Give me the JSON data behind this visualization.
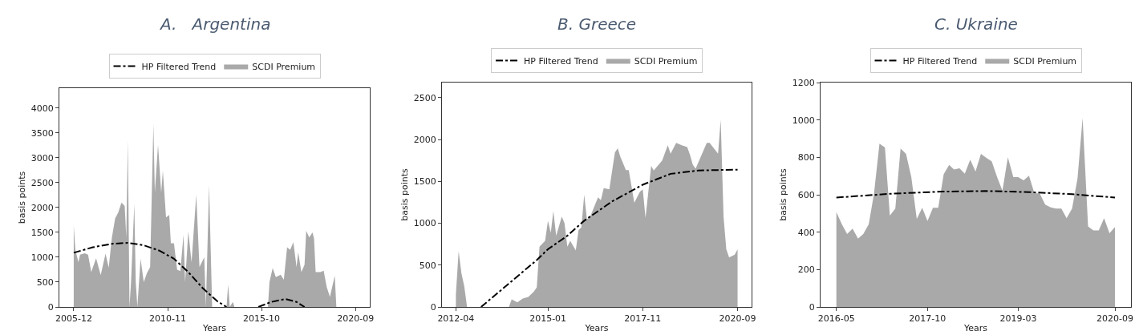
{
  "chart_data": [
    {
      "type": "area",
      "title": "A.   Argentina",
      "xlabel": "Years",
      "ylabel": "basis points",
      "xlim": [
        "2005-03",
        "2021-06"
      ],
      "xticks": [
        "2005-12",
        "2010-11",
        "2015-10",
        "2020-09"
      ],
      "ylim": [
        0,
        4400
      ],
      "yticks": [
        0,
        500,
        1000,
        1500,
        2000,
        2500,
        3000,
        3500,
        4000
      ],
      "legend": "top",
      "series": [
        {
          "name": "HP Filtered Trend",
          "type": "line",
          "color": "#000000",
          "line_style": "dashdot",
          "x": [
            "2005-12",
            "2006-12",
            "2007-12",
            "2008-10",
            "2009-08",
            "2010-06",
            "2011-03",
            "2011-12",
            "2012-09",
            "2013-06",
            "2013-12",
            "2014-10",
            "2015-08",
            "2016-04",
            "2017-01",
            "2017-08",
            "2018-01"
          ],
          "values": [
            1090,
            1200,
            1270,
            1290,
            1240,
            1130,
            970,
            700,
            380,
            120,
            0,
            null,
            0,
            100,
            160,
            100,
            0
          ]
        },
        {
          "name": "SCDI Premium",
          "type": "area",
          "color": "#a9a9a9",
          "x": [
            "2005-12",
            "2006-01",
            "2006-03",
            "2006-04",
            "2006-07",
            "2006-09",
            "2006-11",
            "2007-02",
            "2007-05",
            "2007-08",
            "2007-10",
            "2007-12",
            "2008-02",
            "2008-04",
            "2008-06",
            "2008-08",
            "2008-09",
            "2008-10",
            "2008-11",
            "2008-12",
            "2009-02",
            "2009-03",
            "2009-04",
            "2009-06",
            "2009-08",
            "2009-10",
            "2009-12",
            "2010-02",
            "2010-03",
            "2010-05",
            "2010-07",
            "2010-08",
            "2010-10",
            "2010-12",
            "2011-01",
            "2011-03",
            "2011-05",
            "2011-07",
            "2011-09",
            "2011-10",
            "2011-12",
            "2012-02",
            "2012-05",
            "2012-07",
            "2012-10",
            "2012-11",
            "2013-01",
            "2013-03",
            "2013-12",
            "2014-01",
            "2014-02",
            "2014-04",
            "2014-05",
            "2016-02",
            "2016-03",
            "2016-05",
            "2016-07",
            "2016-10",
            "2016-12",
            "2017-02",
            "2017-04",
            "2017-06",
            "2017-08",
            "2017-09",
            "2017-11",
            "2018-01",
            "2018-02",
            "2018-04",
            "2018-06",
            "2018-07",
            "2018-08",
            "2018-11",
            "2019-01",
            "2019-03",
            "2019-05",
            "2019-08",
            "2019-09"
          ],
          "values": [
            1630,
            1150,
            900,
            1050,
            1080,
            1050,
            700,
            980,
            640,
            1070,
            790,
            1400,
            1780,
            1900,
            2100,
            2030,
            1400,
            3340,
            0,
            500,
            2070,
            500,
            0,
            970,
            500,
            680,
            800,
            3680,
            2300,
            3260,
            2300,
            2740,
            1800,
            1850,
            1280,
            1280,
            750,
            720,
            1450,
            500,
            1520,
            900,
            2260,
            800,
            1000,
            0,
            2450,
            0,
            0,
            450,
            0,
            100,
            0,
            0,
            500,
            780,
            600,
            650,
            550,
            1200,
            1150,
            1300,
            800,
            1100,
            700,
            850,
            1530,
            1400,
            1500,
            1380,
            700,
            700,
            730,
            400,
            200,
            630,
            0
          ]
        }
      ]
    },
    {
      "type": "area",
      "title": "B. Greece",
      "xlabel": "Years",
      "ylabel": "basis points",
      "xlim": [
        "2011-11",
        "2021-02"
      ],
      "xticks": [
        "2012-04",
        "2015-01",
        "2017-11",
        "2020-09"
      ],
      "ylim": [
        0,
        2680
      ],
      "yticks": [
        0,
        500,
        1000,
        1500,
        2000,
        2500
      ],
      "legend": "top",
      "series": [
        {
          "name": "HP Filtered Trend",
          "type": "line",
          "color": "#000000",
          "line_style": "dashdot",
          "x": [
            "2013-01",
            "2013-11",
            "2014-09",
            "2015-01",
            "2015-08",
            "2016-02",
            "2016-12",
            "2017-11",
            "2018-09",
            "2019-07",
            "2020-09"
          ],
          "values": [
            0,
            280,
            560,
            690,
            850,
            1030,
            1260,
            1460,
            1590,
            1630,
            1640
          ]
        },
        {
          "name": "SCDI Premium",
          "type": "area",
          "color": "#a9a9a9",
          "x": [
            "2012-04",
            "2012-05",
            "2012-06",
            "2012-07",
            "2012-08",
            "2013-11",
            "2013-12",
            "2014-02",
            "2014-04",
            "2014-06",
            "2014-08",
            "2014-09",
            "2014-10",
            "2014-12",
            "2015-01",
            "2015-02",
            "2015-03",
            "2015-04",
            "2015-06",
            "2015-07",
            "2015-08",
            "2015-09",
            "2015-11",
            "2015-12",
            "2016-01",
            "2016-02",
            "2016-03",
            "2016-04",
            "2016-07",
            "2016-08",
            "2016-09",
            "2016-11",
            "2017-01",
            "2017-02",
            "2017-03",
            "2017-05",
            "2017-06",
            "2017-08",
            "2017-10",
            "2017-11",
            "2017-12",
            "2018-02",
            "2018-03",
            "2018-06",
            "2018-08",
            "2018-09",
            "2018-11",
            "2019-01",
            "2019-03",
            "2019-04",
            "2019-05",
            "2019-06",
            "2019-10",
            "2019-11",
            "2020-02",
            "2020-03",
            "2020-04",
            "2020-05",
            "2020-06",
            "2020-08",
            "2020-09"
          ],
          "values": [
            150,
            665,
            400,
            250,
            0,
            0,
            90,
            55,
            100,
            120,
            185,
            235,
            720,
            790,
            1030,
            885,
            1145,
            850,
            1080,
            1000,
            720,
            790,
            675,
            920,
            950,
            1340,
            1050,
            1065,
            1310,
            1275,
            1420,
            1405,
            1845,
            1895,
            1795,
            1635,
            1635,
            1245,
            1375,
            1405,
            1065,
            1685,
            1630,
            1750,
            1930,
            1830,
            1960,
            1930,
            1910,
            1815,
            1700,
            1650,
            1960,
            1960,
            1830,
            2235,
            1080,
            690,
            590,
            625,
            690
          ]
        }
      ]
    },
    {
      "type": "area",
      "title": "C. Ukraine",
      "xlabel": "Years",
      "ylabel": "basis points",
      "xlim": [
        "2016-02",
        "2020-12"
      ],
      "xticks": [
        "2016-05",
        "2017-10",
        "2019-03",
        "2020-09"
      ],
      "ylim": [
        0,
        1200
      ],
      "yticks": [
        0,
        200,
        400,
        600,
        800,
        1000,
        1200
      ],
      "legend": "top",
      "series": [
        {
          "name": "HP Filtered Trend",
          "type": "line",
          "color": "#000000",
          "line_style": "dashdot",
          "x": [
            "2016-05",
            "2017-03",
            "2018-01",
            "2018-09",
            "2019-05",
            "2020-01",
            "2020-09"
          ],
          "values": [
            585,
            605,
            617,
            620,
            614,
            603,
            585
          ]
        },
        {
          "name": "SCDI Premium",
          "type": "area",
          "color": "#a9a9a9",
          "x": [
            "2016-05",
            "2016-06",
            "2016-07",
            "2016-08",
            "2016-09",
            "2016-10",
            "2016-11",
            "2016-12",
            "2017-01",
            "2017-02",
            "2017-03",
            "2017-04",
            "2017-05",
            "2017-06",
            "2017-07",
            "2017-08",
            "2017-09",
            "2017-10",
            "2017-11",
            "2017-12",
            "2018-01",
            "2018-02",
            "2018-03",
            "2018-04",
            "2018-05",
            "2018-06",
            "2018-07",
            "2018-08",
            "2018-09",
            "2018-10",
            "2018-11",
            "2018-12",
            "2019-01",
            "2019-02",
            "2019-03",
            "2019-04",
            "2019-05",
            "2019-06",
            "2019-07",
            "2019-08",
            "2019-09",
            "2019-10",
            "2019-11",
            "2019-12",
            "2020-01",
            "2020-02",
            "2020-03",
            "2020-04",
            "2020-05",
            "2020-06",
            "2020-07",
            "2020-08",
            "2020-09"
          ],
          "values": [
            507,
            442,
            390,
            419,
            365,
            390,
            442,
            607,
            873,
            853,
            489,
            526,
            848,
            819,
            694,
            470,
            530,
            460,
            530,
            530,
            709,
            760,
            735,
            741,
            712,
            787,
            724,
            819,
            797,
            779,
            694,
            621,
            800,
            694,
            694,
            677,
            702,
            607,
            607,
            548,
            533,
            526,
            526,
            475,
            526,
            687,
            1010,
            431,
            409,
            409,
            475,
            394,
            428
          ]
        }
      ]
    }
  ]
}
